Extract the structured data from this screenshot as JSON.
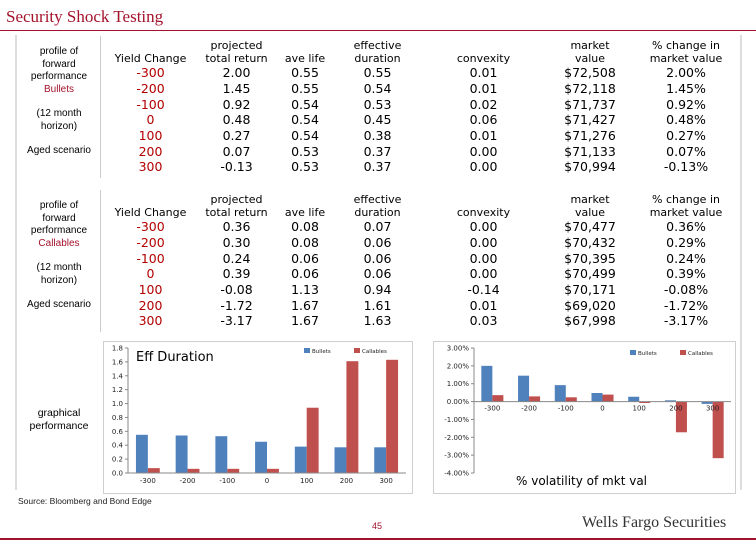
{
  "title": "Security Shock Testing",
  "bullets_side": {
    "l1": "profile of",
    "l2": "forward",
    "l3": "performance",
    "l4": "Bullets",
    "l5": "(12 month",
    "l6": "horizon)",
    "l7": "Aged scenario"
  },
  "callables_side": {
    "l1": "profile of",
    "l2": "forward",
    "l3": "performance",
    "l4": "Callables",
    "l5": "(12 month",
    "l6": "horizon)",
    "l7": "Aged scenario"
  },
  "graphical_side": {
    "l1": "graphical",
    "l2": "performance"
  },
  "columns": {
    "yield": "Yield Change",
    "proj1": "projected",
    "proj2": "total return",
    "avelife": "ave life",
    "eff1": "effective",
    "eff2": "duration",
    "convexity": "convexity",
    "mkt1": "market",
    "mkt2": "value",
    "pct1": "% change in",
    "pct2": "market value"
  },
  "bullets_rows": [
    [
      "-300",
      "2.00",
      "0.55",
      "0.55",
      "0.01",
      "$72,508",
      "2.00%"
    ],
    [
      "-200",
      "1.45",
      "0.55",
      "0.54",
      "0.01",
      "$72,118",
      "1.45%"
    ],
    [
      "-100",
      "0.92",
      "0.54",
      "0.53",
      "0.02",
      "$71,737",
      "0.92%"
    ],
    [
      "0",
      "0.48",
      "0.54",
      "0.45",
      "0.06",
      "$71,427",
      "0.48%"
    ],
    [
      "100",
      "0.27",
      "0.54",
      "0.38",
      "0.01",
      "$71,276",
      "0.27%"
    ],
    [
      "200",
      "0.07",
      "0.53",
      "0.37",
      "0.00",
      "$71,133",
      "0.07%"
    ],
    [
      "300",
      "-0.13",
      "0.53",
      "0.37",
      "0.00",
      "$70,994",
      "-0.13%"
    ]
  ],
  "callables_rows": [
    [
      "-300",
      "0.36",
      "0.08",
      "0.07",
      "0.00",
      "$70,477",
      "0.36%"
    ],
    [
      "-200",
      "0.30",
      "0.08",
      "0.06",
      "0.00",
      "$70,432",
      "0.29%"
    ],
    [
      "-100",
      "0.24",
      "0.06",
      "0.06",
      "0.00",
      "$70,395",
      "0.24%"
    ],
    [
      "0",
      "0.39",
      "0.06",
      "0.06",
      "0.00",
      "$70,499",
      "0.39%"
    ],
    [
      "100",
      "-0.08",
      "1.13",
      "0.94",
      "-0.14",
      "$70,171",
      "-0.08%"
    ],
    [
      "200",
      "-1.72",
      "1.67",
      "1.61",
      "0.01",
      "$69,020",
      "-1.72%"
    ],
    [
      "300",
      "-3.17",
      "1.67",
      "1.63",
      "0.03",
      "$67,998",
      "-3.17%"
    ]
  ],
  "colors": {
    "bullets": "#4f81bd",
    "callables": "#c0504d",
    "accent": "#a3122b",
    "negative": "#b30000"
  },
  "chart_data": [
    {
      "type": "bar",
      "title": "Eff Duration",
      "categories": [
        "-300",
        "-200",
        "-100",
        "0",
        "100",
        "200",
        "300"
      ],
      "series": [
        {
          "name": "Bullets",
          "values": [
            0.55,
            0.54,
            0.53,
            0.45,
            0.38,
            0.37,
            0.37
          ]
        },
        {
          "name": "Callables",
          "values": [
            0.07,
            0.06,
            0.06,
            0.06,
            0.94,
            1.61,
            1.63
          ]
        }
      ],
      "ylim": [
        0,
        1.8
      ],
      "yticks": [
        "0.0",
        "0.2",
        "0.4",
        "0.6",
        "0.8",
        "1.0",
        "1.2",
        "1.4",
        "1.6",
        "1.8"
      ],
      "legend": "top-right",
      "grid": false
    },
    {
      "type": "bar",
      "title": "% volatility of mkt val",
      "categories": [
        "-300",
        "-200",
        "-100",
        "0",
        "100",
        "200",
        "300"
      ],
      "series": [
        {
          "name": "Bullets",
          "values": [
            2.0,
            1.45,
            0.92,
            0.48,
            0.27,
            0.07,
            -0.13
          ]
        },
        {
          "name": "Callables",
          "values": [
            0.36,
            0.29,
            0.24,
            0.39,
            -0.08,
            -1.72,
            -3.17
          ]
        }
      ],
      "ylim": [
        -4,
        3
      ],
      "yticks": [
        "-4.00%",
        "-3.00%",
        "-2.00%",
        "-1.00%",
        "0.00%",
        "1.00%",
        "2.00%",
        "3.00%"
      ],
      "legend": "top-right",
      "grid": false
    }
  ],
  "source": "Source: Bloomberg and Bond Edge",
  "page_number": "45",
  "brand": "Wells Fargo Securities"
}
